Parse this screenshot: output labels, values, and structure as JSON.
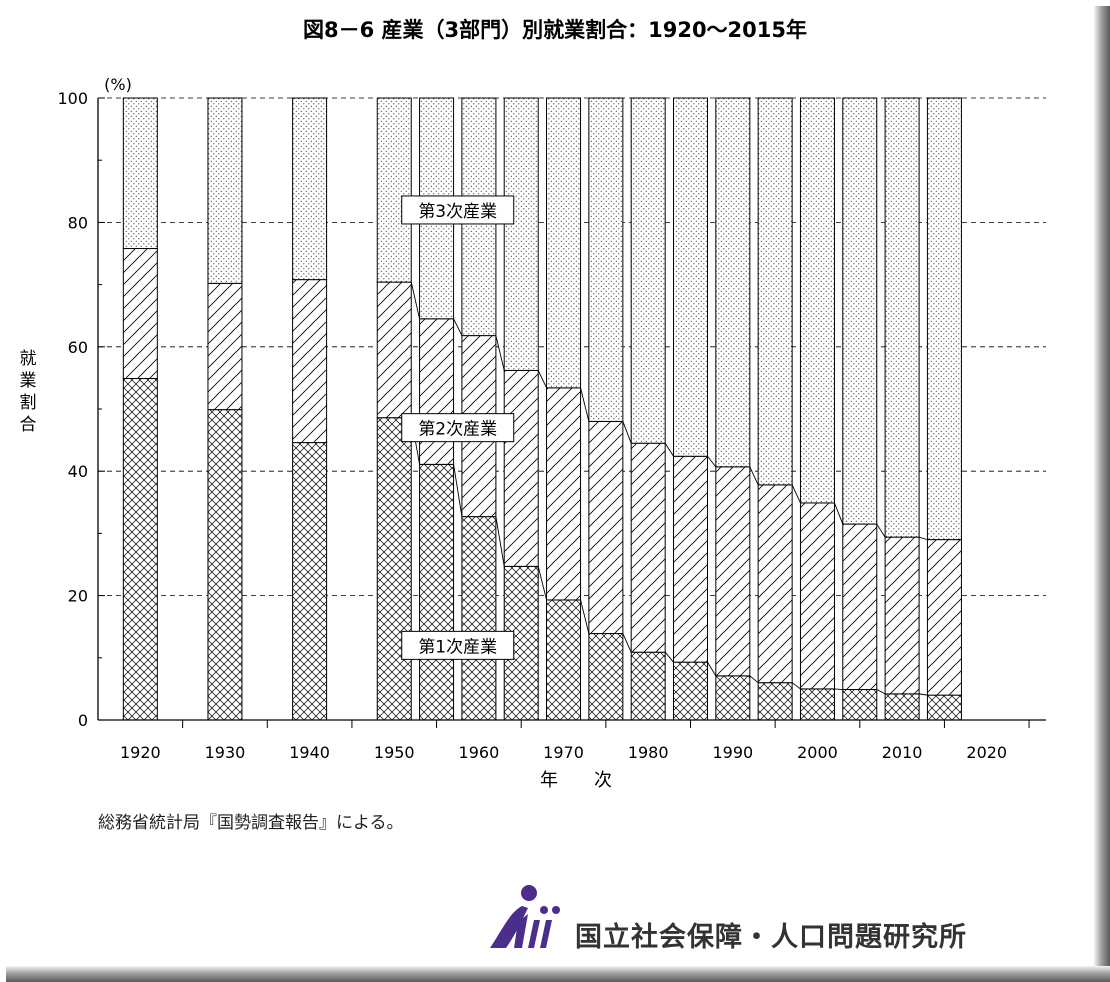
{
  "title": "図8－6 産業（3部門）別就業割合：1920～2015年",
  "source": "総務省統計局『国勢調査報告』による。",
  "logo_text": "国立社会保障・人口問題研究所",
  "chart_data": {
    "type": "bar",
    "stacked": true,
    "xlabel": "年　　次",
    "ylabel": "就業割合",
    "yunit": "(%)",
    "ylim": [
      0,
      100
    ],
    "yticks": [
      0,
      20,
      40,
      60,
      80,
      100
    ],
    "xticks": [
      1920,
      1930,
      1940,
      1950,
      1960,
      1970,
      1980,
      1990,
      2000,
      2010,
      2020
    ],
    "xlim": [
      1915,
      2027
    ],
    "grid": "horizontal dashed",
    "categories": [
      1920,
      1930,
      1940,
      1950,
      1955,
      1960,
      1965,
      1970,
      1975,
      1980,
      1985,
      1990,
      1995,
      2000,
      2005,
      2010,
      2015
    ],
    "series": [
      {
        "name": "第1次産業",
        "values": [
          54.9,
          49.9,
          44.6,
          48.6,
          41.1,
          32.7,
          24.7,
          19.3,
          13.9,
          10.9,
          9.3,
          7.1,
          6.0,
          5.0,
          4.9,
          4.2,
          4.0
        ]
      },
      {
        "name": "第2次産業",
        "values": [
          20.9,
          20.3,
          26.2,
          21.8,
          23.4,
          29.1,
          31.5,
          34.1,
          34.1,
          33.6,
          33.1,
          33.6,
          31.8,
          29.9,
          26.6,
          25.2,
          25.0
        ]
      },
      {
        "name": "第3次産業",
        "values": [
          24.2,
          29.8,
          29.2,
          29.6,
          35.5,
          38.2,
          43.8,
          46.6,
          52.0,
          55.5,
          57.6,
          59.3,
          62.2,
          65.1,
          68.5,
          70.6,
          71.0
        ]
      }
    ],
    "series_labels_at": [
      "bottom",
      "middle",
      "top"
    ]
  }
}
